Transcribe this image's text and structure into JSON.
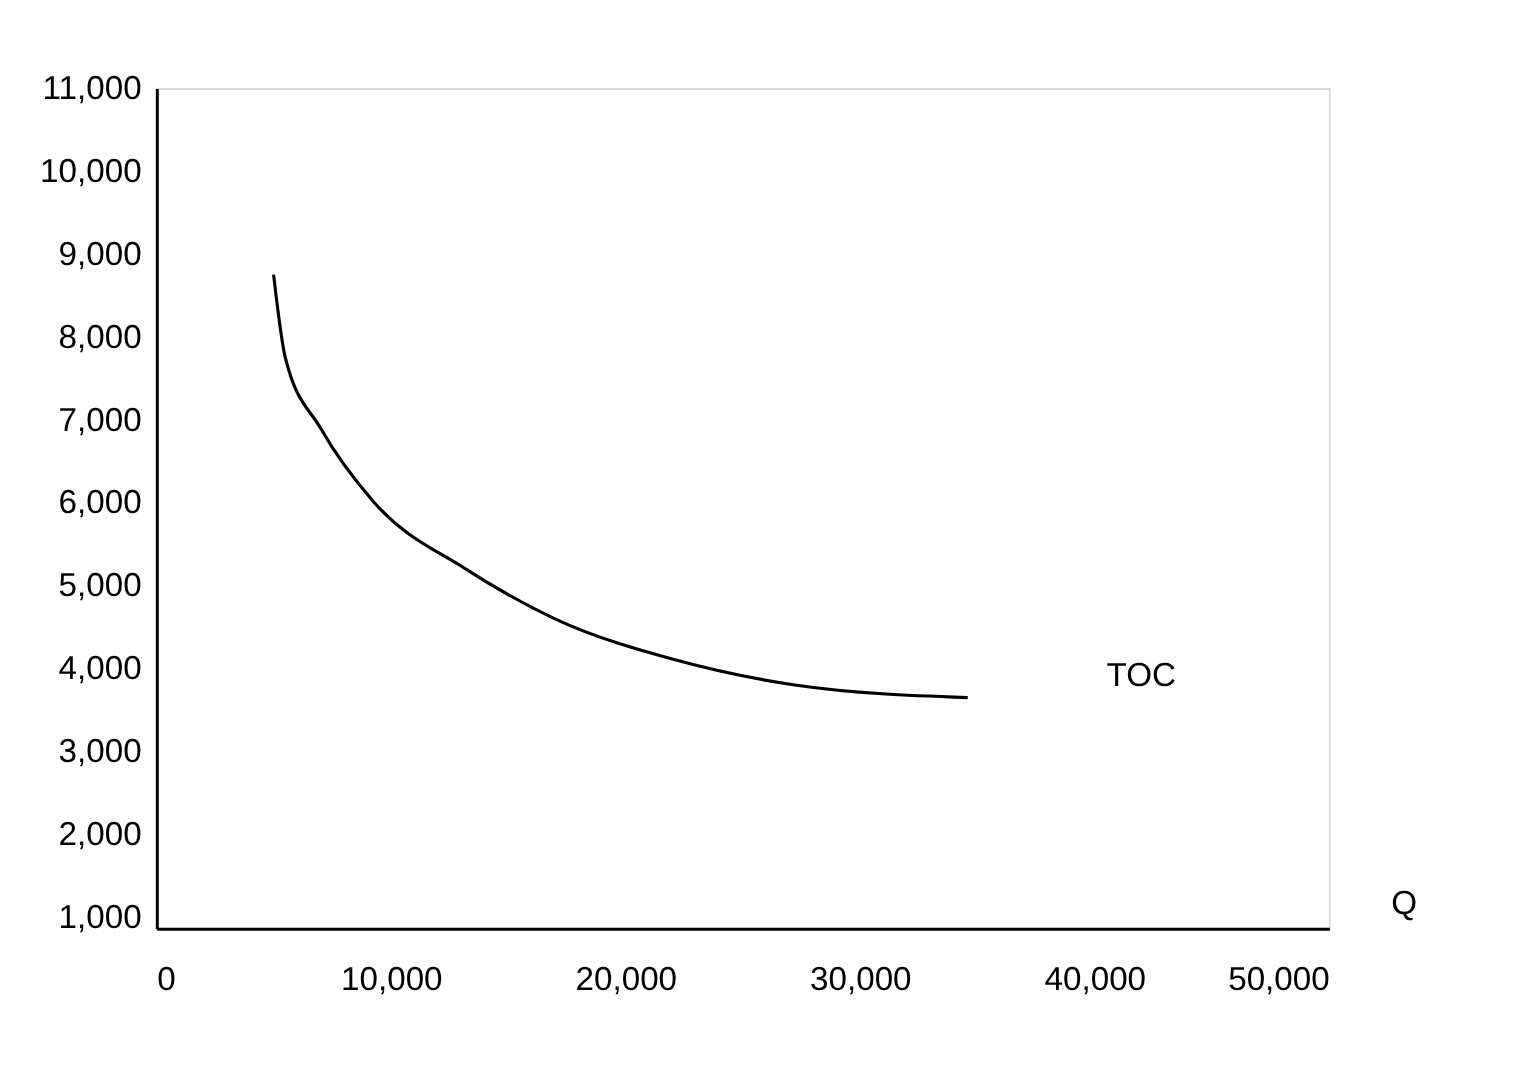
{
  "chart_data": {
    "type": "line",
    "xlabel": "Q",
    "x": [
      5000,
      5500,
      7000,
      9300,
      13200,
      17000,
      22200,
      27300,
      34600
    ],
    "series": [
      {
        "color": "#000000",
        "values": [
          8750,
          7750,
          6900,
          6000,
          5200,
          4600,
          4100,
          3800,
          3650
        ]
      }
    ],
    "xlim": [
      0,
      50000
    ],
    "xticks": [
      0,
      {
        "value": 10000,
        "label": "10,000"
      },
      {
        "value": 20000,
        "label": "20,000"
      },
      {
        "value": 30000,
        "label": "30,000"
      },
      {
        "value": 40000,
        "label": "40,000"
      },
      {
        "value": 50000,
        "label": "50,000"
      }
    ],
    "ylim": [
      870,
      11000
    ],
    "yticks": [
      {
        "value": 1000,
        "label": "1,000"
      },
      {
        "value": 2000,
        "label": "2,000"
      },
      {
        "value": 3000,
        "label": "3,000"
      },
      {
        "value": 4000,
        "label": "4,000"
      },
      {
        "value": 5000,
        "label": "5,000"
      },
      {
        "value": 6000,
        "label": "6,000"
      },
      {
        "value": 7000,
        "label": "7,000"
      },
      {
        "value": 8000,
        "label": "8,000"
      },
      {
        "value": 9000,
        "label": "9,000"
      },
      {
        "value": 10000,
        "label": "10,000"
      },
      {
        "value": 11000,
        "label": "11,000"
      }
    ],
    "annotations": [
      "TOC"
    ],
    "grid": false,
    "marker": "none",
    "line_style": "solid"
  }
}
